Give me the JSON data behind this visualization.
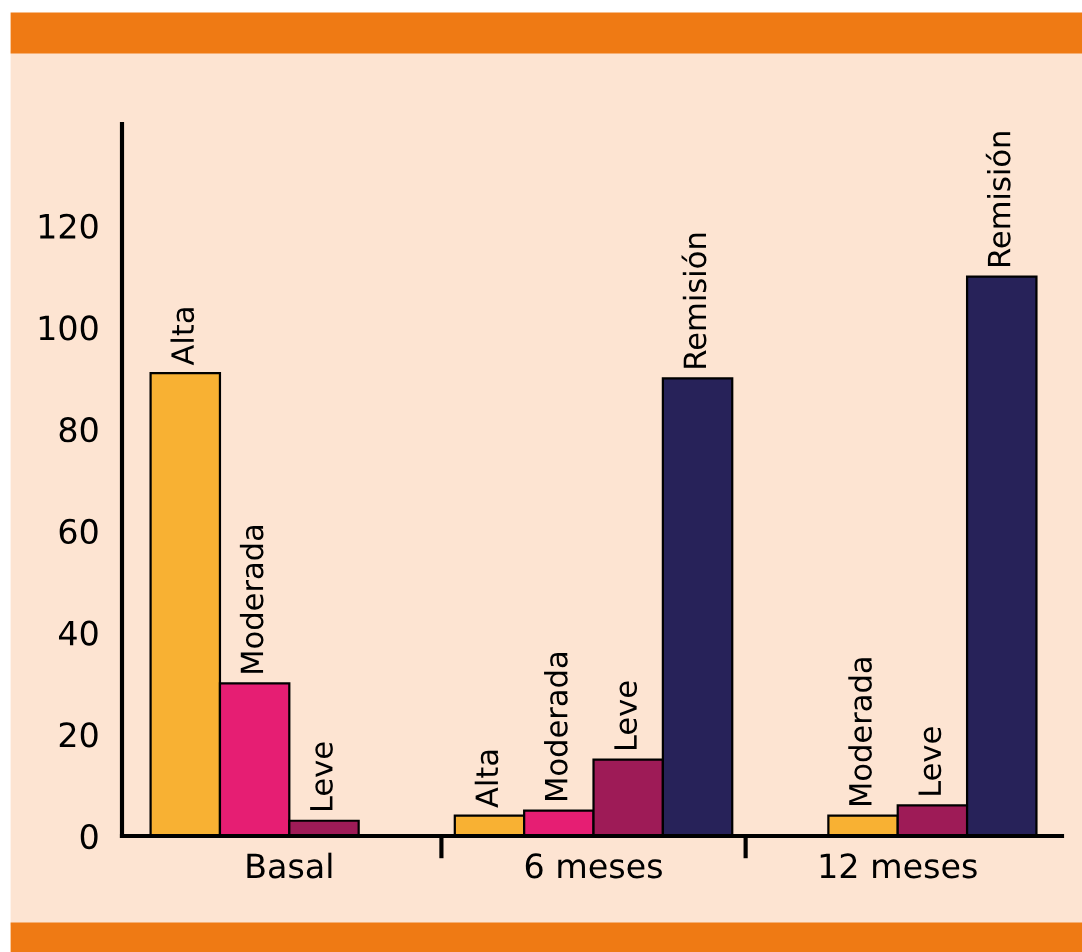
{
  "chart_data": {
    "type": "bar",
    "categories": [
      "Basal",
      "6 meses",
      "12 meses"
    ],
    "series": [
      {
        "name": "Alta",
        "color": "#f8b133",
        "values": [
          91,
          4,
          null
        ]
      },
      {
        "name": "Moderada",
        "colors": [
          "#e61e73",
          "#e61e73",
          "#f8b133"
        ],
        "values": [
          30,
          5,
          4
        ]
      },
      {
        "name": "Leve",
        "color": "#9e1b57",
        "values": [
          3,
          15,
          6
        ]
      },
      {
        "name": "Remisión",
        "color": "#272259",
        "values": [
          null,
          90,
          110
        ]
      }
    ],
    "ylim": [
      0,
      140
    ],
    "yticks": [
      0,
      20,
      40,
      60,
      80,
      100,
      120
    ],
    "grid": false,
    "legend": false
  }
}
